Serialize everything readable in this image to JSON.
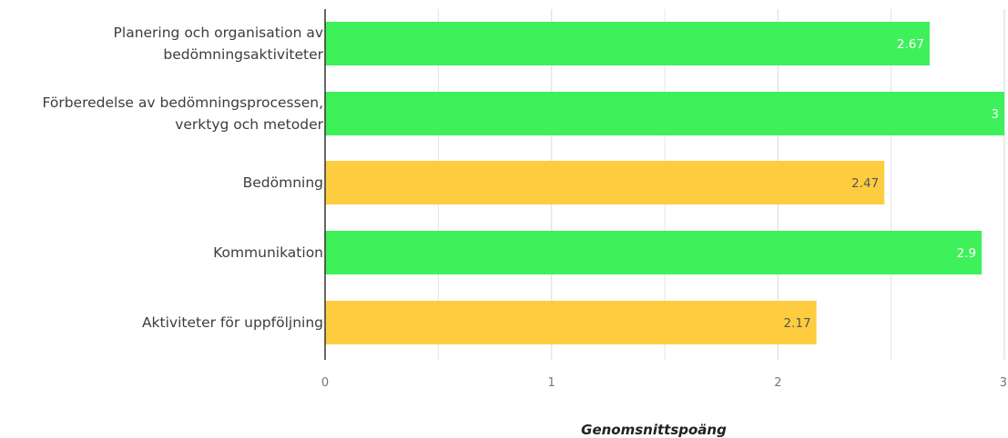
{
  "chart_data": {
    "type": "bar",
    "orientation": "horizontal",
    "categories": [
      [
        "Planering och organisation av",
        "bedömningsaktiviteter"
      ],
      [
        "Förberedelse av bedömningsprocessen,",
        "verktyg och metoder"
      ],
      [
        "Bedömning"
      ],
      [
        "Kommunikation"
      ],
      [
        "Aktiviteter för uppföljning"
      ]
    ],
    "values": [
      2.67,
      3,
      2.47,
      2.9,
      2.17
    ],
    "value_labels": [
      "2.67",
      "3",
      "2.47",
      "2.9",
      "2.17"
    ],
    "bar_colors": [
      "#3ef05a",
      "#3ef05a",
      "#fdcd3f",
      "#3ef05a",
      "#fdcd3f"
    ],
    "value_label_colors": [
      "#ffffff",
      "#ffffff",
      "#555555",
      "#ffffff",
      "#555555"
    ],
    "xlim": [
      0,
      3
    ],
    "xticks": [
      0,
      1,
      2,
      3
    ],
    "xtick_labels": [
      "0",
      "1",
      "2",
      "3"
    ],
    "xlabel": "Genomsnittspoäng",
    "grid": true,
    "grid_color": "#e4e4e4",
    "axis_color": "#333333"
  }
}
